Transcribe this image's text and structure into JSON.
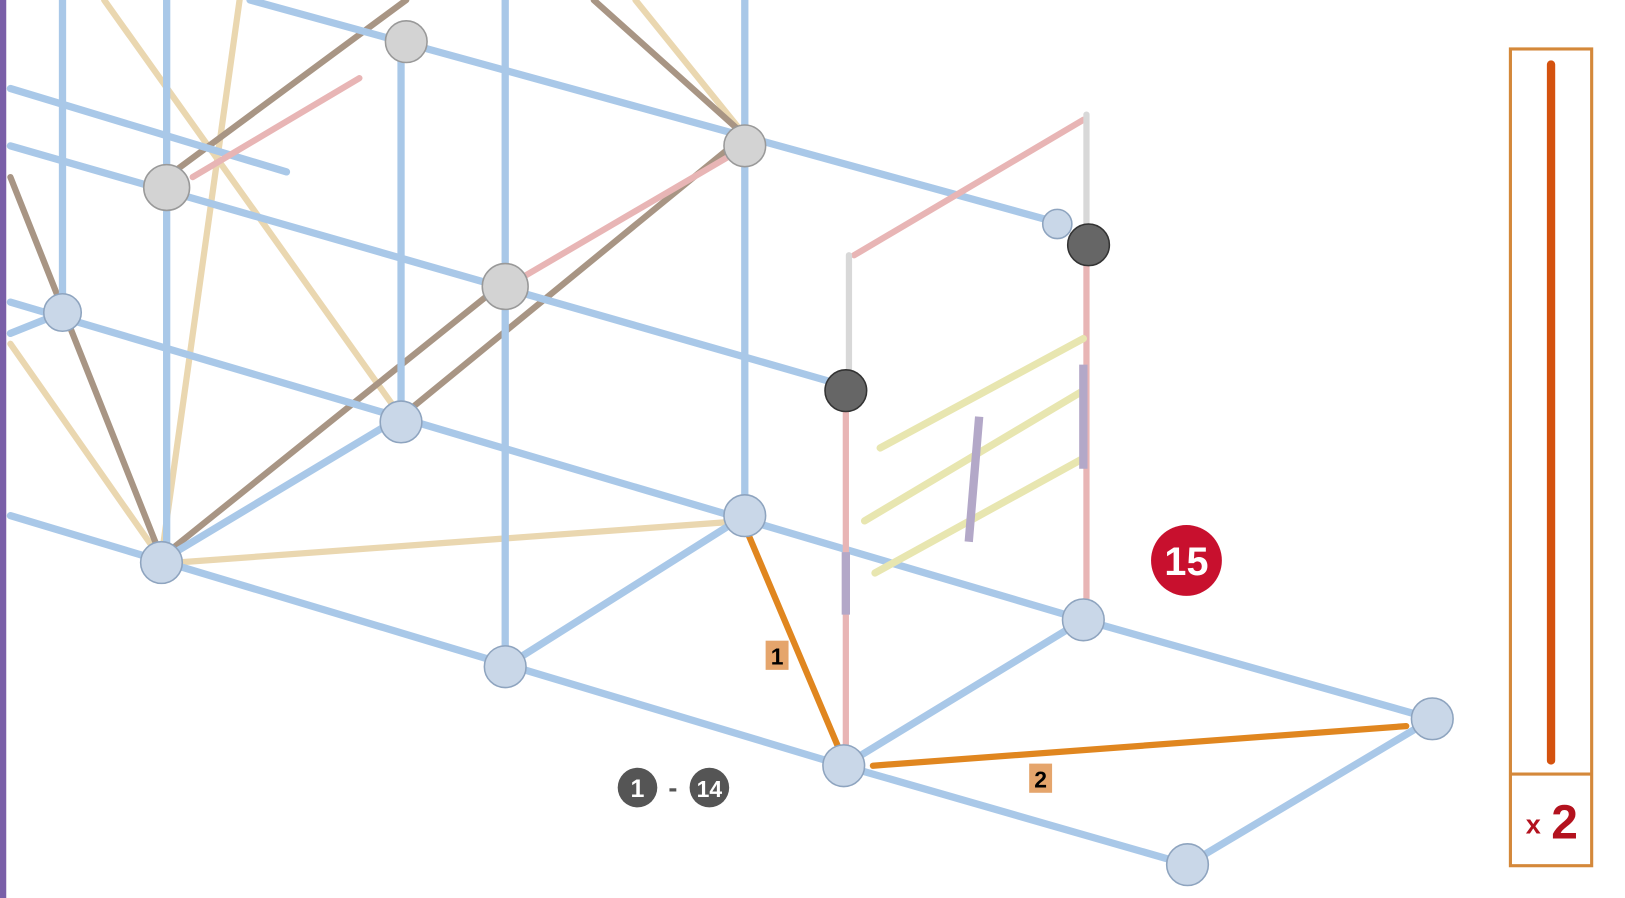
{
  "step": "15",
  "callouts": [
    "1",
    "2"
  ],
  "previous_steps": {
    "from": "1",
    "separator": "-",
    "to": "14"
  },
  "parts": [
    {
      "count_prefix": "x",
      "count": "2"
    }
  ]
}
